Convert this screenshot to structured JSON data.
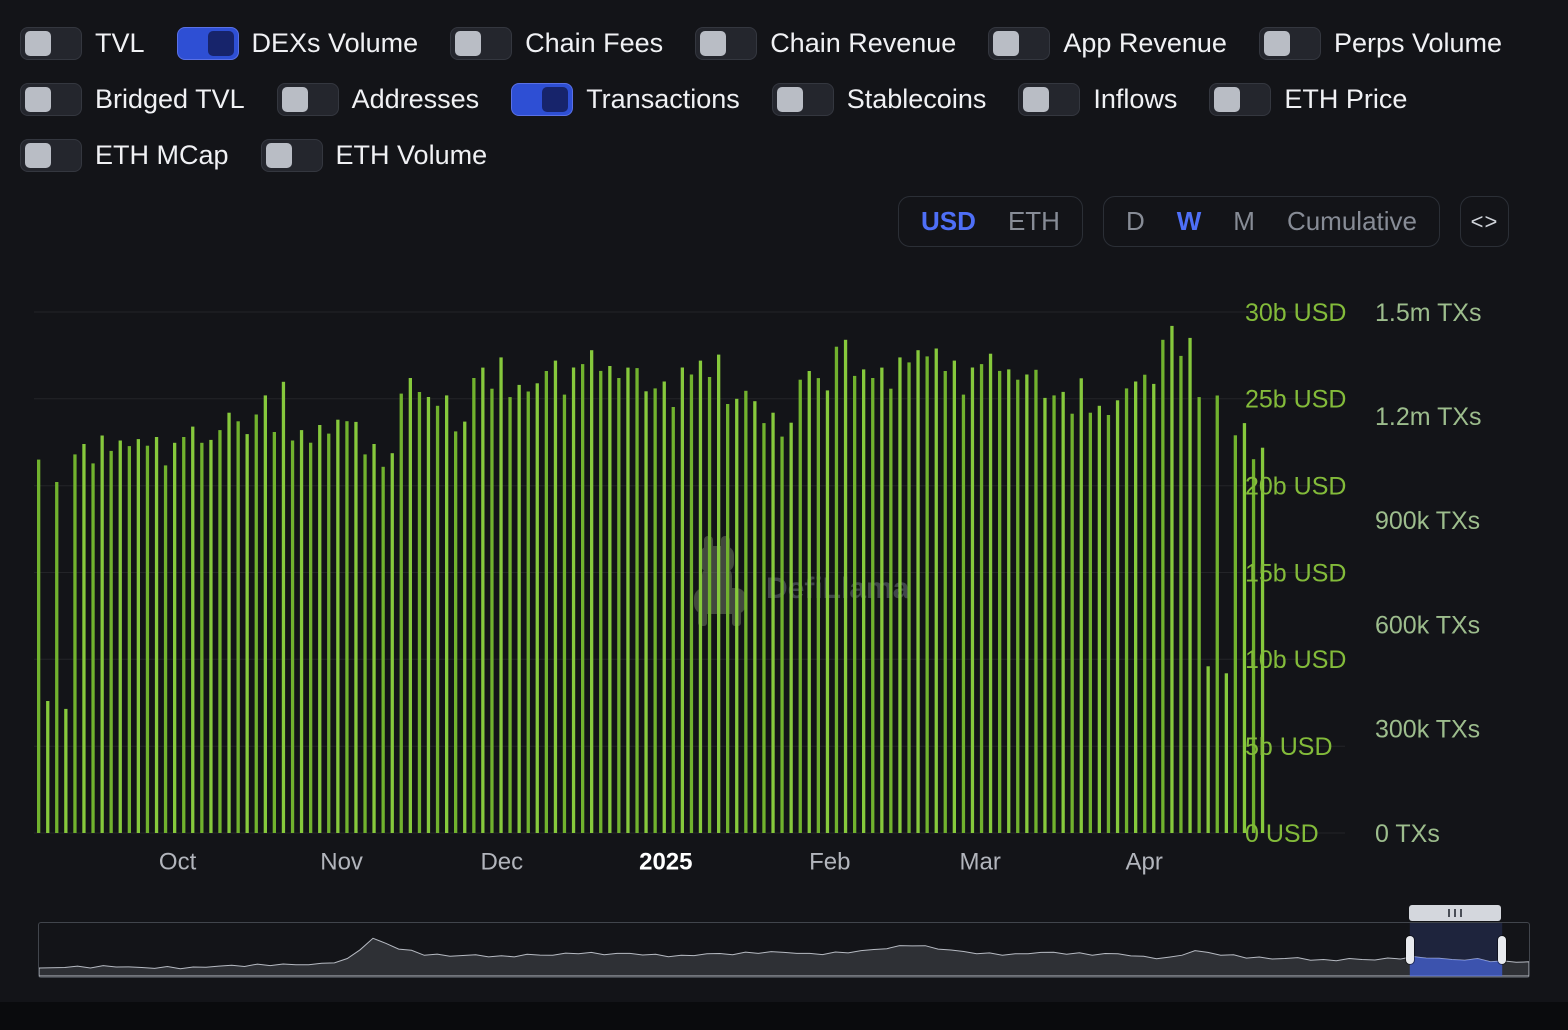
{
  "toggles": {
    "rows": [
      [
        {
          "label": "TVL",
          "on": false
        },
        {
          "label": "DEXs Volume",
          "on": true
        },
        {
          "label": "Chain Fees",
          "on": false
        },
        {
          "label": "Chain Revenue",
          "on": false
        },
        {
          "label": "App Revenue",
          "on": false
        },
        {
          "label": "Perps Volume",
          "on": false
        }
      ],
      [
        {
          "label": "Bridged TVL",
          "on": false
        },
        {
          "label": "Addresses",
          "on": false
        },
        {
          "label": "Transactions",
          "on": true
        },
        {
          "label": "Stablecoins",
          "on": false
        },
        {
          "label": "Inflows",
          "on": false
        },
        {
          "label": "ETH Price",
          "on": false
        }
      ],
      [
        {
          "label": "ETH MCap",
          "on": false
        },
        {
          "label": "ETH Volume",
          "on": false
        }
      ]
    ]
  },
  "controls": {
    "currency": {
      "options": [
        "USD",
        "ETH"
      ],
      "selected": "USD"
    },
    "interval": {
      "options": [
        "D",
        "W",
        "M",
        "Cumulative"
      ],
      "selected": "W"
    },
    "embed_icon": "<>"
  },
  "watermark": "DefiLlama",
  "colors": {
    "accent_blue": "#4e6ff7",
    "toggle_on_blue": "#2e4fd4",
    "bar_green": "#71b22e",
    "bar_green_light": "#86c93c",
    "left_axis_green": "#83bb3a",
    "right_axis_green": "#9dbd8d",
    "background": "#131418"
  },
  "chart_data": {
    "type": "bar",
    "interval": "weekly",
    "x": [
      "2024-09-02",
      "2024-09-09",
      "2024-09-16",
      "2024-09-23",
      "2024-09-30",
      "2024-10-07",
      "2024-10-14",
      "2024-10-21",
      "2024-10-28",
      "2024-11-04",
      "2024-11-11",
      "2024-11-18",
      "2024-11-25",
      "2024-12-02",
      "2024-12-09",
      "2024-12-16",
      "2024-12-23",
      "2024-12-30",
      "2025-01-06",
      "2025-01-13",
      "2025-01-20",
      "2025-01-27",
      "2025-02-03",
      "2025-02-10",
      "2025-02-17",
      "2025-02-24",
      "2025-03-03",
      "2025-03-10",
      "2025-03-17",
      "2025-03-24",
      "2025-03-31",
      "2025-04-07",
      "2025-04-14",
      "2025-04-21"
    ],
    "series": [
      {
        "name": "DEXs Volume",
        "axis": "left",
        "unit": "billion USD",
        "color": "#71b22e",
        "values": [
          21.5,
          21.8,
          22.0,
          22.3,
          22.8,
          23.2,
          24.1,
          22.6,
          23.0,
          21.8,
          25.3,
          24.6,
          26.2,
          25.1,
          26.6,
          27.0,
          26.2,
          25.6,
          26.4,
          24.7,
          23.6,
          26.1,
          28.0,
          26.2,
          27.1,
          26.6,
          27.0,
          26.1,
          25.2,
          24.2,
          25.6,
          28.4,
          25.1,
          22.9
        ]
      },
      {
        "name": "Transactions",
        "axis": "right",
        "unit": "million TXs",
        "color": "#86c93c",
        "values": [
          0.38,
          1.12,
          1.13,
          1.14,
          1.17,
          1.21,
          1.26,
          1.16,
          1.19,
          1.12,
          1.31,
          1.26,
          1.34,
          1.29,
          1.36,
          1.39,
          1.34,
          1.3,
          1.36,
          1.25,
          1.21,
          1.33,
          1.42,
          1.34,
          1.39,
          1.36,
          1.38,
          1.32,
          1.27,
          1.23,
          1.3,
          1.46,
          0.48,
          1.18
        ]
      }
    ],
    "left_axis": {
      "title": "USD",
      "max": 30,
      "tick_step": 5,
      "ticks": [
        "30b USD",
        "25b USD",
        "20b USD",
        "15b USD",
        "10b USD",
        "5b USD",
        "0 USD"
      ],
      "color": "#83bb3a"
    },
    "right_axis": {
      "title": "TXs",
      "max": 1.5,
      "tick_step": 0.3,
      "ticks": [
        "1.5m TXs",
        "1.2m TXs",
        "900k TXs",
        "600k TXs",
        "300k TXs",
        "0 TXs"
      ],
      "color": "#9dbd8d"
    },
    "x_ticks": [
      {
        "label": "Oct",
        "pos": 0.114
      },
      {
        "label": "Nov",
        "pos": 0.247
      },
      {
        "label": "Dec",
        "pos": 0.377
      },
      {
        "label": "2025",
        "pos": 0.51,
        "emphasis": true
      },
      {
        "label": "Feb",
        "pos": 0.643
      },
      {
        "label": "Mar",
        "pos": 0.765
      },
      {
        "label": "Apr",
        "pos": 0.898
      }
    ],
    "grid": true,
    "legend_position": "none",
    "brush_selection": {
      "start_frac": 0.92,
      "end_frac": 0.982
    },
    "minimap_profile": [
      0.15,
      0.16,
      0.15,
      0.17,
      0.16,
      0.18,
      0.17,
      0.19,
      0.18,
      0.2,
      0.22,
      0.25,
      0.35,
      0.78,
      0.55,
      0.42,
      0.4,
      0.43,
      0.41,
      0.44,
      0.42,
      0.45,
      0.43,
      0.46,
      0.44,
      0.42,
      0.45,
      0.43,
      0.46,
      0.48,
      0.46,
      0.49,
      0.52,
      0.56,
      0.62,
      0.55,
      0.5,
      0.47,
      0.45,
      0.48,
      0.44,
      0.42,
      0.45,
      0.4,
      0.38,
      0.52,
      0.42,
      0.36,
      0.34,
      0.37,
      0.33,
      0.35,
      0.32,
      0.34,
      0.36,
      0.33,
      0.35,
      0.3,
      0.28
    ]
  }
}
